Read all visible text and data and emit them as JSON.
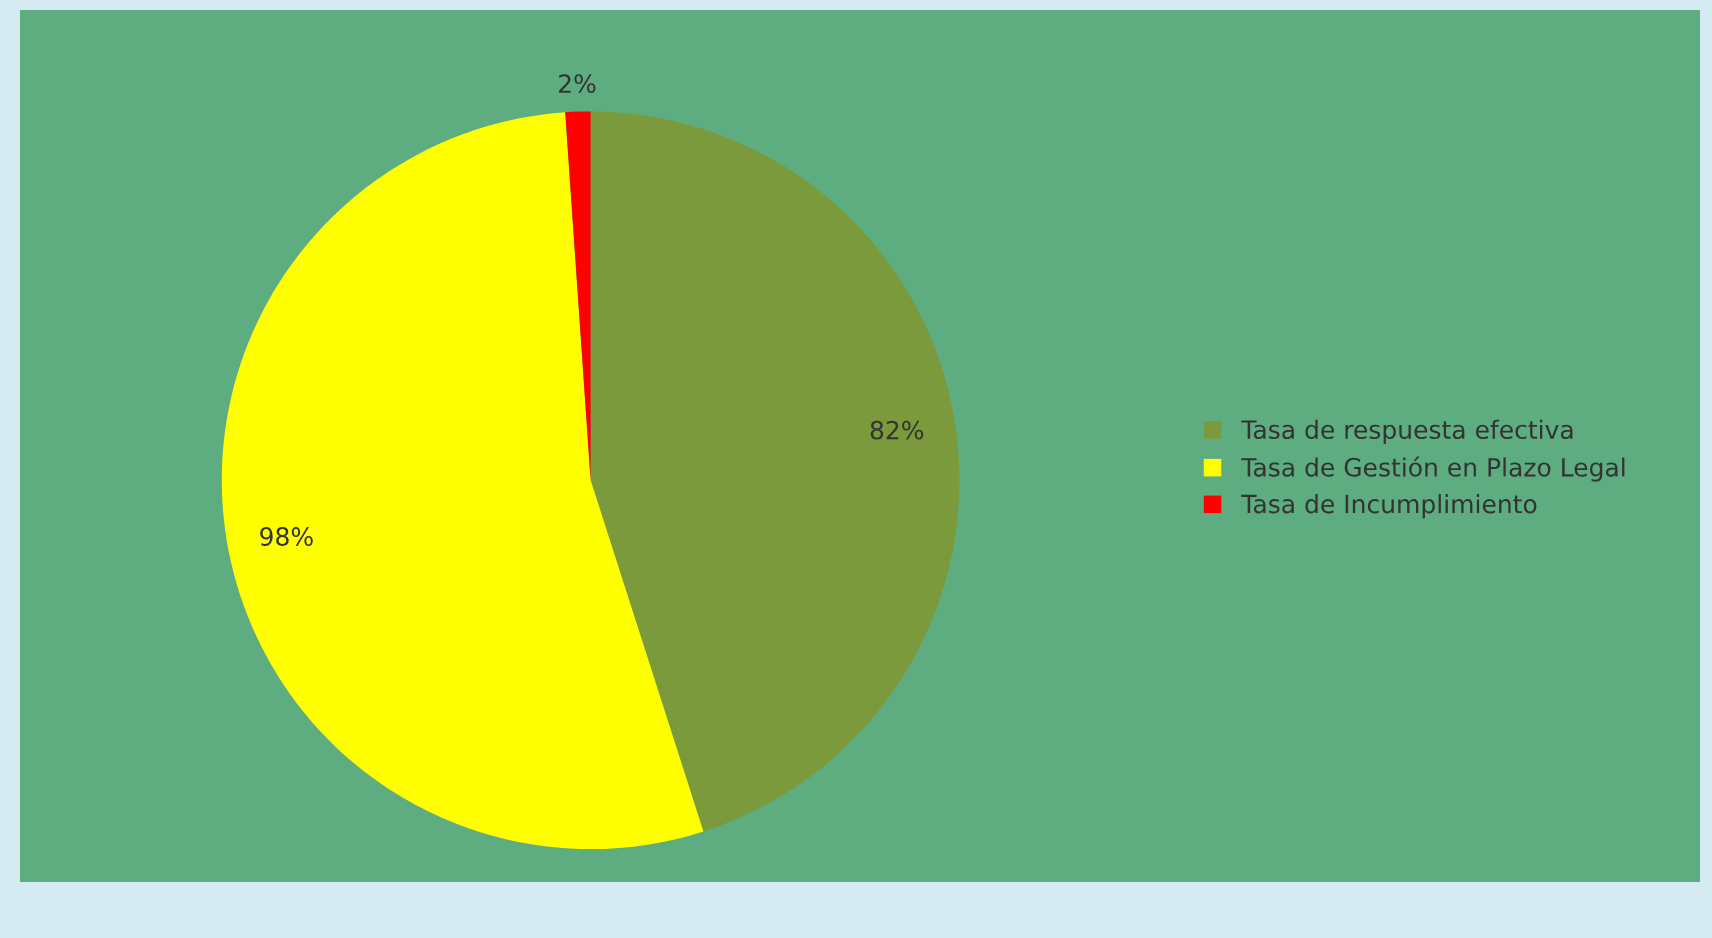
{
  "chart_data": {
    "type": "pie",
    "categories": [
      "Tasa de respuesta efectiva",
      "Tasa de Gestión en Plazo Legal",
      "Tasa de Incumplimiento"
    ],
    "values": [
      82,
      98,
      2
    ],
    "colors": [
      "#7a9a3c",
      "#ffff00",
      "#ff0000"
    ],
    "value_labels": [
      "82%",
      "98%",
      "2%"
    ],
    "legend": "right"
  }
}
